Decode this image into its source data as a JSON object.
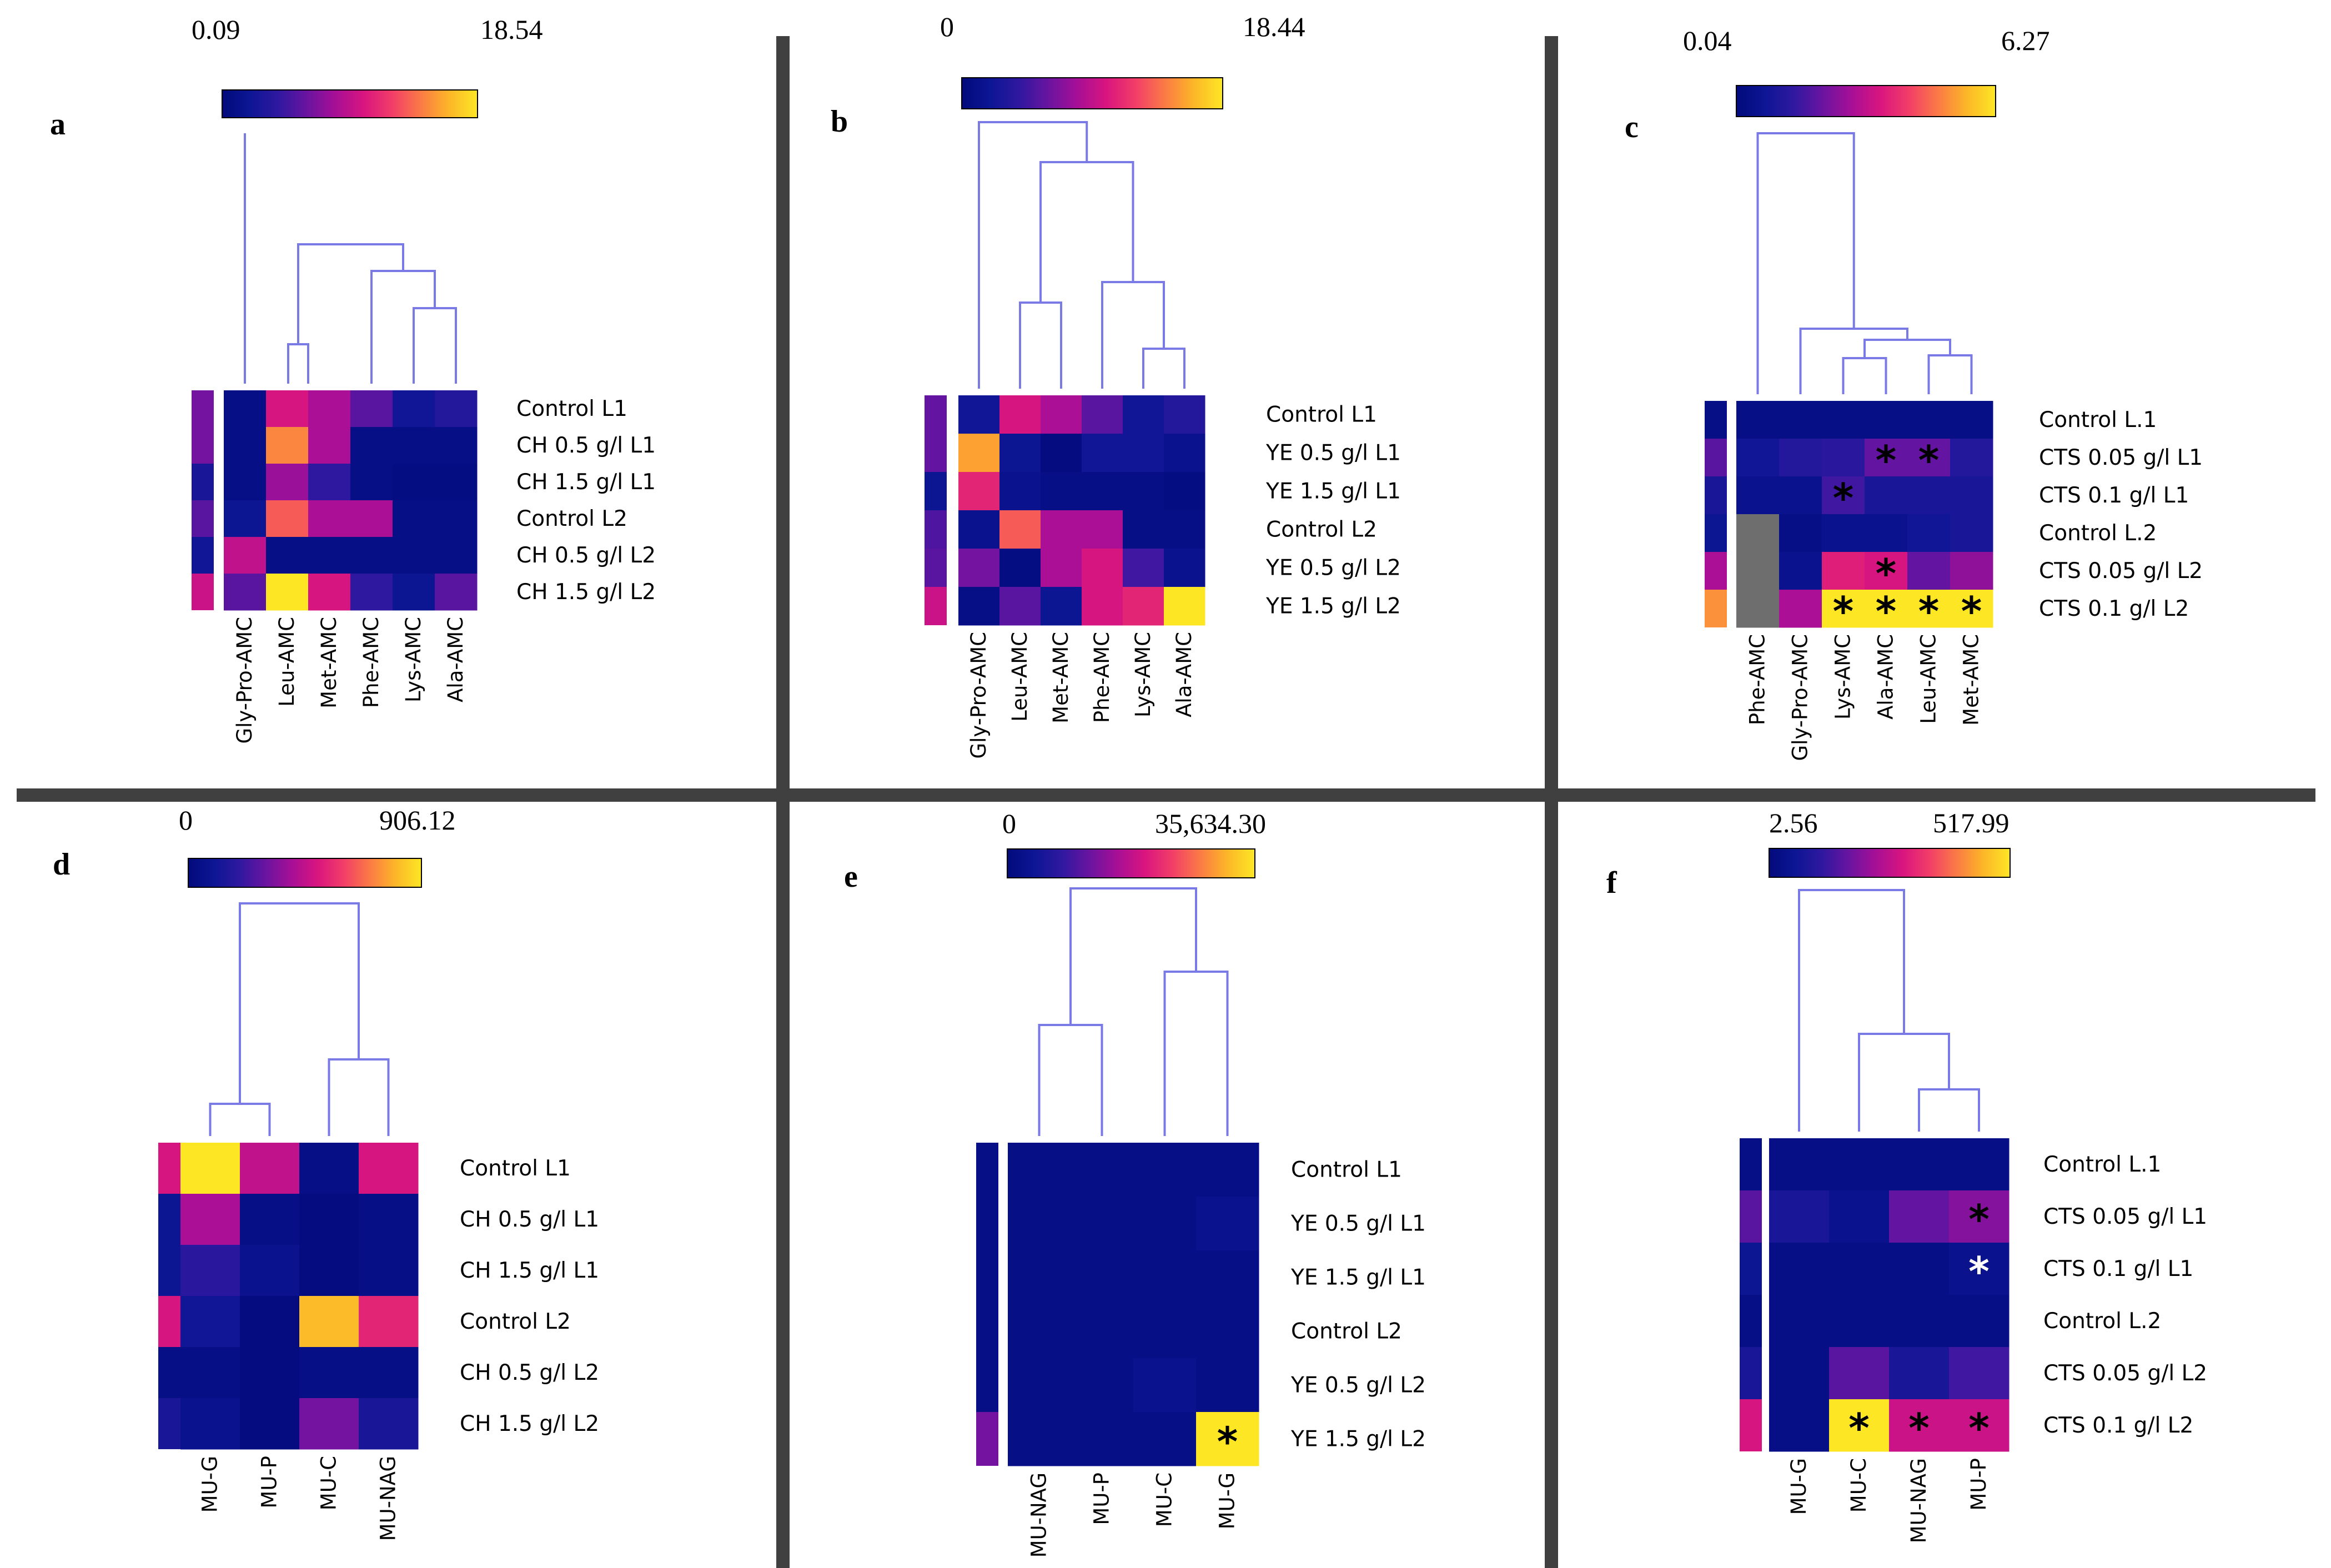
{
  "colors": {
    "colormap": [
      "#020a7c",
      "#0d1694",
      "#3018a0",
      "#6a14a0",
      "#a70f96",
      "#d9157f",
      "#f23e68",
      "#fb7a45",
      "#fcb628",
      "#fde725"
    ],
    "missing": "#6e6e6e",
    "dendrogram": "#7a7ae6",
    "divider": "#404040"
  },
  "chart_data": [
    {
      "panel": "a",
      "type": "heatmap",
      "scale_min": "0.09",
      "scale_max": "18.54",
      "rows": [
        "Control L1",
        "CH 0.5 g/l L1",
        "CH 1.5 g/l L1",
        "Control L2",
        "CH 0.5 g/l L2",
        "CH 1.5 g/l L2"
      ],
      "columns": [
        "Gly-Pro-AMC",
        "Leu-AMC",
        "Met-AMC",
        "Phe-AMC",
        "Lys-AMC",
        "Ala-AMC"
      ],
      "values": [
        [
          0.05,
          0.55,
          0.45,
          0.3,
          0.12,
          0.18
        ],
        [
          0.05,
          0.8,
          0.45,
          0.05,
          0.05,
          0.05
        ],
        [
          0.05,
          0.42,
          0.22,
          0.05,
          0.03,
          0.03
        ],
        [
          0.1,
          0.72,
          0.45,
          0.45,
          0.05,
          0.05
        ],
        [
          0.5,
          0.05,
          0.05,
          0.05,
          0.05,
          0.05
        ],
        [
          0.3,
          1.0,
          0.55,
          0.22,
          0.1,
          0.3
        ]
      ],
      "row_annotation": [
        0.35,
        0.35,
        0.15,
        0.3,
        0.12,
        0.52
      ],
      "stars": []
    },
    {
      "panel": "b",
      "type": "heatmap",
      "scale_min": "0",
      "scale_max": "18.44",
      "rows": [
        "Control L1",
        "YE 0.5 g/l L1",
        "YE 1.5 g/l L1",
        "Control L2",
        "YE 0.5 g/l L2",
        "YE 1.5 g/l L2"
      ],
      "columns": [
        "Gly-Pro-AMC",
        "Leu-AMC",
        "Met-AMC",
        "Phe-AMC",
        "Lys-AMC",
        "Ala-AMC"
      ],
      "values": [
        [
          0.12,
          0.55,
          0.45,
          0.3,
          0.12,
          0.18
        ],
        [
          0.85,
          0.1,
          0.02,
          0.12,
          0.12,
          0.08
        ],
        [
          0.6,
          0.08,
          0.05,
          0.05,
          0.05,
          0.03
        ],
        [
          0.08,
          0.72,
          0.45,
          0.45,
          0.05,
          0.05
        ],
        [
          0.35,
          0.03,
          0.45,
          0.55,
          0.25,
          0.08
        ],
        [
          0.05,
          0.3,
          0.1,
          0.55,
          0.6,
          1.0
        ]
      ],
      "row_annotation": [
        0.32,
        0.32,
        0.1,
        0.28,
        0.3,
        0.52
      ],
      "stars": []
    },
    {
      "panel": "c",
      "type": "heatmap",
      "scale_min": "0.04",
      "scale_max": "6.27",
      "rows": [
        "Control L.1",
        "CTS 0.05 g/l L1",
        "CTS 0.1 g/l L1",
        "Control L.2",
        "CTS 0.05 g/l L2",
        "CTS 0.1 g/l L2"
      ],
      "columns": [
        "Phe-AMC",
        "Gly-Pro-AMC",
        "Lys-AMC",
        "Ala-AMC",
        "Leu-AMC",
        "Met-AMC"
      ],
      "values": [
        [
          0.05,
          0.05,
          0.05,
          0.05,
          0.05,
          0.05
        ],
        [
          0.12,
          0.18,
          0.2,
          0.32,
          0.32,
          0.18
        ],
        [
          0.08,
          0.08,
          0.25,
          0.15,
          0.15,
          0.15
        ],
        [
          null,
          0.05,
          0.08,
          0.08,
          0.12,
          0.15
        ],
        [
          null,
          0.08,
          0.58,
          0.55,
          0.32,
          0.4
        ],
        [
          null,
          0.45,
          1.0,
          1.0,
          1.0,
          1.0
        ]
      ],
      "row_annotation": [
        0.05,
        0.3,
        0.15,
        0.1,
        0.45,
        0.82
      ],
      "stars": [
        [
          1,
          3
        ],
        [
          1,
          4
        ],
        [
          2,
          2
        ],
        [
          4,
          3
        ],
        [
          5,
          2
        ],
        [
          5,
          3
        ],
        [
          5,
          4
        ],
        [
          5,
          5
        ]
      ]
    },
    {
      "panel": "d",
      "type": "heatmap",
      "scale_min": "0",
      "scale_max": "906.12",
      "rows": [
        "Control L1",
        "CH 0.5 g/l L1",
        "CH 1.5 g/l L1",
        "Control L2",
        "CH 0.5 g/l L2",
        "CH 1.5 g/l L2"
      ],
      "columns": [
        "MU-G",
        "MU-P",
        "MU-C",
        "MU-NAG"
      ],
      "values": [
        [
          1.0,
          0.5,
          0.05,
          0.55
        ],
        [
          0.45,
          0.05,
          0.02,
          0.05
        ],
        [
          0.2,
          0.08,
          0.02,
          0.05
        ],
        [
          0.12,
          0.02,
          0.9,
          0.6
        ],
        [
          0.05,
          0.02,
          0.05,
          0.05
        ],
        [
          0.08,
          0.02,
          0.35,
          0.15
        ]
      ],
      "row_annotation": [
        0.55,
        0.1,
        0.1,
        0.55,
        0.05,
        0.15
      ],
      "stars": []
    },
    {
      "panel": "e",
      "type": "heatmap",
      "scale_min": "0",
      "scale_max": "35,634.30",
      "rows": [
        "Control L1",
        "YE 0.5 g/l L1",
        "YE 1.5 g/l L1",
        "Control L2",
        "YE 0.5 g/l L2",
        "YE 1.5 g/l L2"
      ],
      "columns": [
        "MU-NAG",
        "MU-P",
        "MU-C",
        "MU-G"
      ],
      "values": [
        [
          0.05,
          0.05,
          0.05,
          0.05
        ],
        [
          0.05,
          0.05,
          0.05,
          0.08
        ],
        [
          0.05,
          0.05,
          0.05,
          0.05
        ],
        [
          0.05,
          0.05,
          0.05,
          0.05
        ],
        [
          0.05,
          0.05,
          0.08,
          0.05
        ],
        [
          0.05,
          0.05,
          0.05,
          1.0
        ]
      ],
      "row_annotation": [
        0.05,
        0.05,
        0.05,
        0.05,
        0.05,
        0.35
      ],
      "stars": [
        [
          5,
          3
        ]
      ]
    },
    {
      "panel": "f",
      "type": "heatmap",
      "scale_min": "2.56",
      "scale_max": "517.99",
      "rows": [
        "Control L.1",
        "CTS 0.05 g/l L1",
        "CTS 0.1 g/l L1",
        "Control L.2",
        "CTS 0.05 g/l L2",
        "CTS 0.1 g/l L2"
      ],
      "columns": [
        "MU-G",
        "MU-C",
        "MU-NAG",
        "MU-P"
      ],
      "values": [
        [
          0.05,
          0.05,
          0.05,
          0.05
        ],
        [
          0.15,
          0.08,
          0.32,
          0.38
        ],
        [
          0.05,
          0.05,
          0.05,
          0.08
        ],
        [
          0.05,
          0.05,
          0.05,
          0.05
        ],
        [
          0.05,
          0.3,
          0.15,
          0.25
        ],
        [
          0.05,
          1.0,
          0.52,
          0.52
        ]
      ],
      "row_annotation": [
        0.05,
        0.3,
        0.1,
        0.05,
        0.15,
        0.55
      ],
      "stars": [
        [
          1,
          3
        ],
        [
          2,
          3
        ],
        [
          5,
          1
        ],
        [
          5,
          2
        ],
        [
          5,
          3
        ]
      ],
      "white_stars": [
        [
          2,
          3
        ]
      ]
    }
  ]
}
